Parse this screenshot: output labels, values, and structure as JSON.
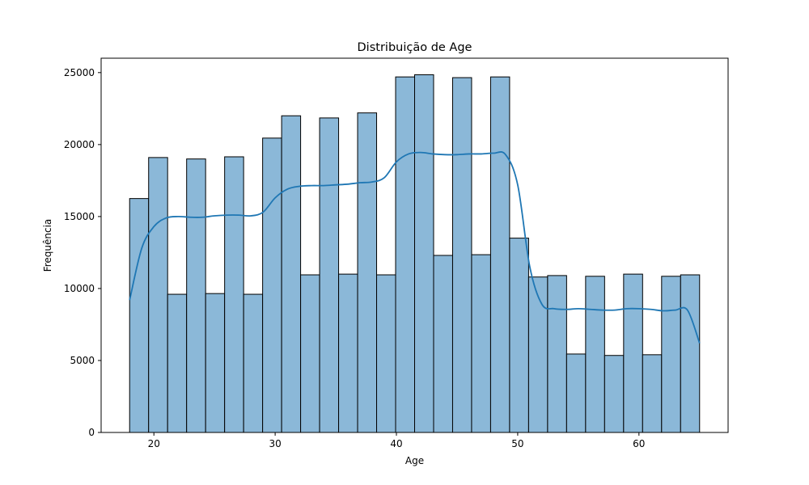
{
  "chart_data": {
    "type": "bar",
    "title": "Distribuição de Age",
    "xlabel": "Age",
    "ylabel": "Frequência",
    "bin_edges": [
      18,
      19.5667,
      21.1333,
      22.7,
      24.2667,
      25.8333,
      27.4,
      28.9667,
      30.5333,
      32.1,
      33.6667,
      35.2333,
      36.8,
      38.3667,
      39.9333,
      41.5,
      43.0667,
      44.6333,
      46.2,
      47.7667,
      49.3333,
      50.9,
      52.4667,
      54.0333,
      55.6,
      57.1667,
      58.7333,
      60.3,
      61.8667,
      63.4333,
      65
    ],
    "values": [
      16250,
      19100,
      9600,
      19000,
      9650,
      19150,
      9600,
      20450,
      22000,
      10950,
      21850,
      11000,
      22200,
      10950,
      24700,
      24850,
      12300,
      24650,
      12350,
      24700,
      13500,
      10800,
      10900,
      5450,
      10850,
      5350,
      11000,
      5400,
      10850,
      10950
    ],
    "kde": {
      "series_name": "",
      "x": [
        18,
        19,
        20,
        21,
        22,
        23,
        24,
        25,
        26,
        27,
        28,
        29,
        30,
        31,
        32,
        33,
        34,
        35,
        36,
        37,
        38,
        39,
        40,
        41,
        42,
        43,
        44,
        45,
        46,
        47,
        48,
        49,
        50,
        51,
        52,
        53,
        54,
        55,
        56,
        57,
        58,
        59,
        60,
        61,
        62,
        63,
        64,
        65
      ],
      "y": [
        9200,
        12800,
        14300,
        14900,
        15000,
        14950,
        14950,
        15050,
        15100,
        15100,
        15050,
        15300,
        16300,
        16900,
        17100,
        17150,
        17150,
        17200,
        17250,
        17350,
        17400,
        17700,
        18800,
        19350,
        19450,
        19350,
        19300,
        19300,
        19350,
        19350,
        19400,
        19300,
        17200,
        11500,
        8900,
        8600,
        8550,
        8600,
        8550,
        8500,
        8500,
        8600,
        8600,
        8550,
        8450,
        8500,
        8500,
        6200
      ]
    },
    "xlim": [
      15.65,
      67.35
    ],
    "ylim": [
      0,
      26000
    ],
    "xticks": [
      20,
      30,
      40,
      50,
      60
    ],
    "yticks": [
      0,
      5000,
      10000,
      15000,
      20000,
      25000
    ],
    "grid": false,
    "colors": {
      "bar_fill": "#8bb8d8",
      "bar_edge": "#000000",
      "kde_line": "#1f77b4"
    }
  }
}
